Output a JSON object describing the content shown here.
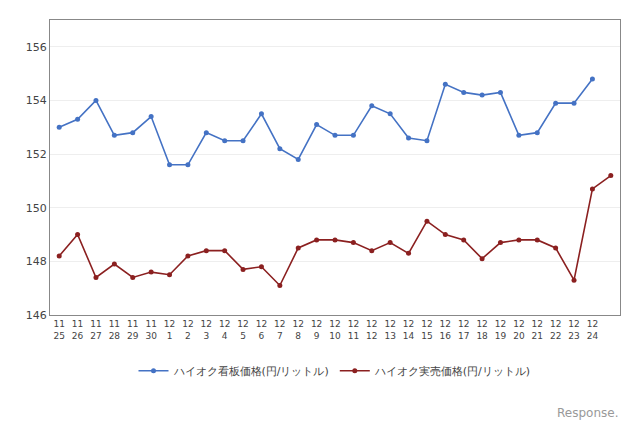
{
  "chart_data": {
    "type": "line",
    "categories": [
      "11\n25",
      "11\n26",
      "11\n27",
      "11\n28",
      "11\n29",
      "11\n30",
      "12\n1",
      "12\n2",
      "12\n3",
      "12\n4",
      "12\n5",
      "12\n6",
      "12\n7",
      "12\n8",
      "12\n9",
      "12\n10",
      "12\n11",
      "12\n12",
      "12\n13",
      "12\n14",
      "12\n15",
      "12\n16",
      "12\n17",
      "12\n18",
      "12\n19",
      "12\n20",
      "12\n21",
      "12\n22",
      "12\n23",
      "12\n24",
      null
    ],
    "series": [
      {
        "name": "ハイオク看板価格(円/リットル)",
        "color": "#4472C4",
        "marker": "circle",
        "line_style": "solid",
        "values": [
          153.0,
          153.3,
          154.0,
          152.7,
          152.8,
          153.4,
          151.6,
          151.6,
          152.8,
          152.5,
          152.5,
          153.5,
          152.2,
          151.8,
          153.1,
          152.7,
          152.7,
          153.8,
          153.5,
          152.6,
          152.5,
          154.6,
          154.3,
          154.2,
          154.3,
          152.7,
          152.8,
          153.9,
          153.9,
          154.8,
          null
        ]
      },
      {
        "name": "ハイオク実売価格(円/リットル)",
        "color": "#8B2020",
        "marker": "circle",
        "line_style": "solid",
        "values": [
          148.2,
          149.0,
          147.4,
          147.9,
          147.4,
          147.6,
          147.5,
          148.2,
          148.4,
          148.4,
          147.7,
          147.8,
          147.1,
          148.5,
          148.8,
          148.8,
          148.7,
          148.4,
          148.7,
          148.3,
          149.5,
          149.0,
          148.8,
          148.1,
          148.7,
          148.8,
          148.8,
          148.5,
          147.3,
          150.7,
          151.2
        ]
      }
    ],
    "ylim": [
      146,
      157
    ],
    "yticks": [
      146,
      148,
      150,
      152,
      154,
      156
    ],
    "grid": true,
    "legend": "bottom",
    "annotations": [
      "Response."
    ]
  }
}
